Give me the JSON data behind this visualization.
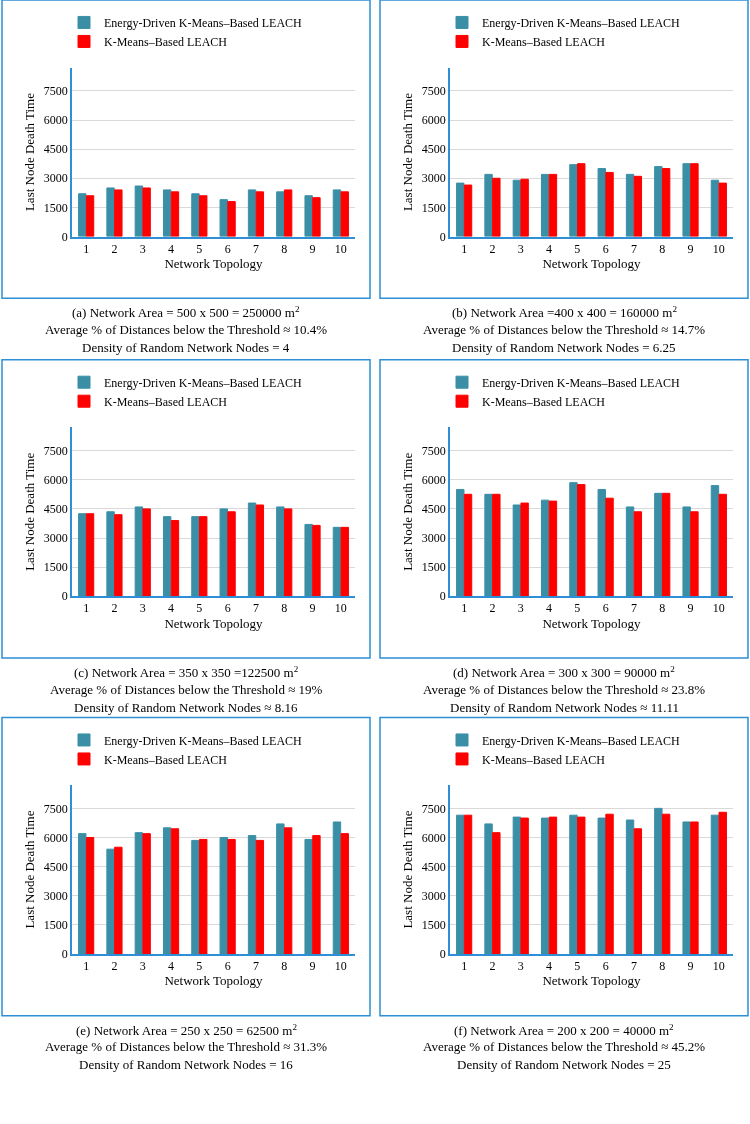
{
  "chart_data": [
    {
      "type": "bar",
      "title": "(a) Network Area = 500 x 500 = 250000 m$^{2}$",
      "annotations": [
        "Average % of Distances below the Threshold ≈ 10.4%",
        "Density of Random Network Nodes = 4"
      ],
      "xlabel": "Network Topology",
      "ylabel": "Last Node Death Time",
      "categories": [
        "1",
        "2",
        "3",
        "4",
        "5",
        "6",
        "7",
        "8",
        "9",
        "10"
      ],
      "ylim": [
        0,
        8700
      ],
      "yticks": [
        0,
        1500,
        3000,
        4500,
        6000,
        7500
      ],
      "grid": "y",
      "legend": "top",
      "series": [
        {
          "name": "Energy-Driven K-Means–Based LEACH",
          "color": "#3a8fa6",
          "values": [
            2200,
            2500,
            2600,
            2400,
            2200,
            1900,
            2400,
            2300,
            2100,
            2400
          ]
        },
        {
          "name": "K-Means–Based LEACH",
          "color": "#ff0000",
          "values": [
            2100,
            2400,
            2500,
            2300,
            2100,
            1800,
            2300,
            2400,
            2000,
            2300
          ]
        }
      ]
    },
    {
      "type": "bar",
      "title": "(b) Network Area =400 x 400 = 160000 m$^{2}$",
      "annotations": [
        "Average % of Distances below the Threshold ≈ 14.7%",
        "Density of Random Network Nodes = 6.25"
      ],
      "xlabel": "Network Topology",
      "ylabel": "Last Node Death Time",
      "categories": [
        "1",
        "2",
        "3",
        "4",
        "5",
        "6",
        "7",
        "8",
        "9",
        "10"
      ],
      "ylim": [
        0,
        8700
      ],
      "yticks": [
        0,
        1500,
        3000,
        4500,
        6000,
        7500
      ],
      "grid": "y",
      "legend": "top",
      "series": [
        {
          "name": "Energy-Driven K-Means–Based LEACH",
          "color": "#3a8fa6",
          "values": [
            2750,
            3200,
            2900,
            3200,
            3700,
            3500,
            3200,
            3600,
            3750,
            2900
          ]
        },
        {
          "name": "K-Means–Based LEACH",
          "color": "#ff0000",
          "values": [
            2650,
            3000,
            2950,
            3200,
            3750,
            3300,
            3100,
            3500,
            3750,
            2750
          ]
        }
      ]
    },
    {
      "type": "bar",
      "title": "(c) Network Area = 350 x 350 =122500 m$^{2}$",
      "annotations": [
        "Average % of Distances below the Threshold ≈ 19%",
        "Density of Random Network Nodes ≈ 8.16"
      ],
      "xlabel": "Network Topology",
      "ylabel": "Last Node Death Time",
      "categories": [
        "1",
        "2",
        "3",
        "4",
        "5",
        "6",
        "7",
        "8",
        "9",
        "10"
      ],
      "ylim": [
        0,
        8700
      ],
      "yticks": [
        0,
        1500,
        3000,
        4500,
        6000,
        7500
      ],
      "grid": "y",
      "legend": "top",
      "series": [
        {
          "name": "Energy-Driven K-Means–Based LEACH",
          "color": "#3a8fa6",
          "values": [
            4250,
            4350,
            4600,
            4100,
            4100,
            4500,
            4800,
            4600,
            3700,
            3550
          ]
        },
        {
          "name": "K-Means–Based LEACH",
          "color": "#ff0000",
          "values": [
            4250,
            4200,
            4500,
            3900,
            4100,
            4350,
            4700,
            4500,
            3650,
            3550
          ]
        }
      ]
    },
    {
      "type": "bar",
      "title": "(d) Network Area = 300 x 300 = 90000 m$^{2}$",
      "annotations": [
        "Average % of Distances below the Threshold ≈ 23.8%",
        "Density of Random Network Nodes ≈ 11.11"
      ],
      "xlabel": "Network Topology",
      "ylabel": "Last Node Death Time",
      "categories": [
        "1",
        "2",
        "3",
        "4",
        "5",
        "6",
        "7",
        "8",
        "9",
        "10"
      ],
      "ylim": [
        0,
        8700
      ],
      "yticks": [
        0,
        1500,
        3000,
        4500,
        6000,
        7500
      ],
      "grid": "y",
      "legend": "top",
      "series": [
        {
          "name": "Energy-Driven K-Means–Based LEACH",
          "color": "#3a8fa6",
          "values": [
            5500,
            5250,
            4700,
            4950,
            5850,
            5500,
            4600,
            5300,
            4600,
            5700
          ]
        },
        {
          "name": "K-Means–Based LEACH",
          "color": "#ff0000",
          "values": [
            5250,
            5250,
            4800,
            4900,
            5750,
            5050,
            4350,
            5300,
            4350,
            5250
          ]
        }
      ]
    },
    {
      "type": "bar",
      "title": "(e) Network Area = 250 x 250 = 62500 m$^{2}$",
      "annotations": [
        "Average % of Distances below the Threshold ≈ 31.3%",
        "Density of Random Network Nodes = 16"
      ],
      "xlabel": "Network Topology",
      "ylabel": "Last Node Death Time",
      "categories": [
        "1",
        "2",
        "3",
        "4",
        "5",
        "6",
        "7",
        "8",
        "9",
        "10"
      ],
      "ylim": [
        0,
        8700
      ],
      "yticks": [
        0,
        1500,
        3000,
        4500,
        6000,
        7500
      ],
      "grid": "y",
      "legend": "top",
      "series": [
        {
          "name": "Energy-Driven K-Means–Based LEACH",
          "color": "#3a8fa6",
          "values": [
            6200,
            5400,
            6250,
            6500,
            5850,
            6000,
            6100,
            6700,
            5900,
            6800
          ]
        },
        {
          "name": "K-Means–Based LEACH",
          "color": "#ff0000",
          "values": [
            6000,
            5500,
            6200,
            6450,
            5900,
            5900,
            5850,
            6500,
            6100,
            6200
          ]
        }
      ]
    },
    {
      "type": "bar",
      "title": "(f) Network Area = 200 x 200 = 40000 m$^{2}$",
      "annotations": [
        "Average % of Distances below the Threshold ≈ 45.2%",
        "Density of Random Network Nodes = 25"
      ],
      "xlabel": "Network Topology",
      "ylabel": "Last Node Death Time",
      "categories": [
        "1",
        "2",
        "3",
        "4",
        "5",
        "6",
        "7",
        "8",
        "9",
        "10"
      ],
      "ylim": [
        0,
        8700
      ],
      "yticks": [
        0,
        1500,
        3000,
        4500,
        6000,
        7500
      ],
      "grid": "y",
      "legend": "top",
      "series": [
        {
          "name": "Energy-Driven K-Means–Based LEACH",
          "color": "#3a8fa6",
          "values": [
            7150,
            6700,
            7050,
            7000,
            7150,
            7000,
            6900,
            7500,
            6800,
            7150
          ]
        },
        {
          "name": "K-Means–Based LEACH",
          "color": "#ff0000",
          "values": [
            7150,
            6250,
            7000,
            7050,
            7050,
            7200,
            6450,
            7200,
            6800,
            7300
          ]
        }
      ]
    }
  ]
}
